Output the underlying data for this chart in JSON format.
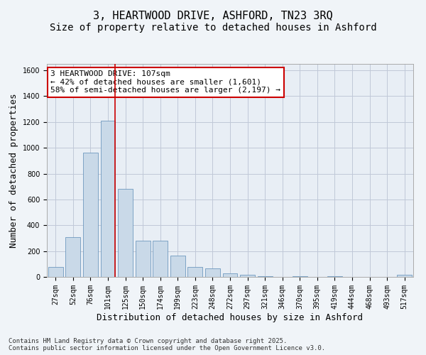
{
  "title_line1": "3, HEARTWOOD DRIVE, ASHFORD, TN23 3RQ",
  "title_line2": "Size of property relative to detached houses in Ashford",
  "xlabel": "Distribution of detached houses by size in Ashford",
  "ylabel": "Number of detached properties",
  "categories": [
    "27sqm",
    "52sqm",
    "76sqm",
    "101sqm",
    "125sqm",
    "150sqm",
    "174sqm",
    "199sqm",
    "223sqm",
    "248sqm",
    "272sqm",
    "297sqm",
    "321sqm",
    "346sqm",
    "370sqm",
    "395sqm",
    "419sqm",
    "444sqm",
    "468sqm",
    "493sqm",
    "517sqm"
  ],
  "bar_values": [
    75,
    310,
    960,
    1210,
    680,
    280,
    280,
    165,
    75,
    65,
    25,
    15,
    5,
    0,
    5,
    0,
    5,
    0,
    0,
    0,
    15
  ],
  "bar_color": "#c9d9e8",
  "bar_edge_color": "#5a8ab5",
  "grid_color": "#c0c8d8",
  "background_color": "#e8eef5",
  "red_line_index": 3,
  "annotation_text": "3 HEARTWOOD DRIVE: 107sqm\n← 42% of detached houses are smaller (1,601)\n58% of semi-detached houses are larger (2,197) →",
  "annotation_box_color": "#ffffff",
  "annotation_box_edge": "#cc0000",
  "red_line_color": "#cc0000",
  "ylim": [
    0,
    1650
  ],
  "yticks": [
    0,
    200,
    400,
    600,
    800,
    1000,
    1200,
    1400,
    1600
  ],
  "fig_bg_color": "#f0f4f8",
  "footnote": "Contains HM Land Registry data © Crown copyright and database right 2025.\nContains public sector information licensed under the Open Government Licence v3.0.",
  "title_fontsize": 11,
  "subtitle_fontsize": 10,
  "axis_label_fontsize": 9,
  "tick_fontsize": 7,
  "annot_fontsize": 8,
  "footnote_fontsize": 6.5
}
